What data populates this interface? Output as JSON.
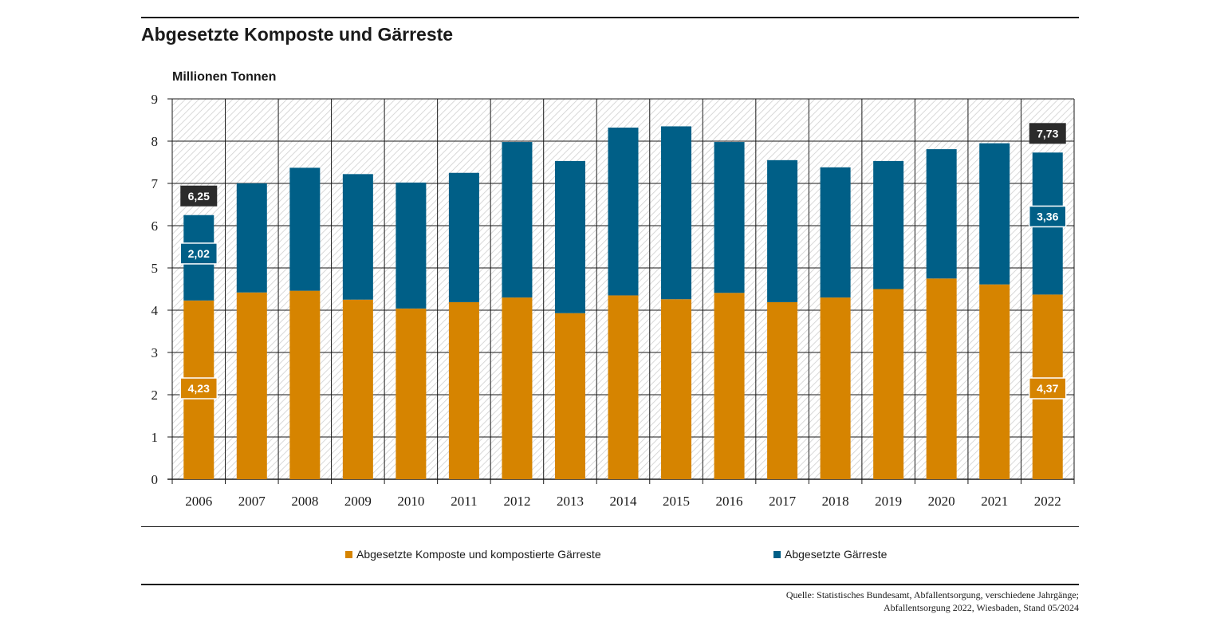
{
  "chart_data": {
    "type": "bar",
    "stacked": true,
    "title": "Abgesetzte Komposte und Gärreste",
    "ylabel": "Millionen Tonnen",
    "xlabel": "",
    "ylim": [
      0,
      9
    ],
    "yticks": [
      "0",
      "1",
      "2",
      "3",
      "4",
      "5",
      "6",
      "7",
      "8",
      "9"
    ],
    "grid": true,
    "legend_position": "bottom",
    "categories": [
      "2006",
      "2007",
      "2008",
      "2009",
      "2010",
      "2011",
      "2012",
      "2013",
      "2014",
      "2015",
      "2016",
      "2017",
      "2018",
      "2019",
      "2020",
      "2021",
      "2022"
    ],
    "series": [
      {
        "name": "Abgesetzte Komposte und kompostierte Gärreste",
        "color": "#d68400",
        "values": [
          4.23,
          4.42,
          4.46,
          4.25,
          4.04,
          4.19,
          4.3,
          3.93,
          4.35,
          4.26,
          4.41,
          4.19,
          4.3,
          4.5,
          4.75,
          4.61,
          4.37
        ]
      },
      {
        "name": "Abgesetzte Gärreste",
        "color": "#005f87",
        "values": [
          2.02,
          2.58,
          2.91,
          2.97,
          2.98,
          3.06,
          3.68,
          3.6,
          3.97,
          4.09,
          3.57,
          3.36,
          3.08,
          3.03,
          3.06,
          3.34,
          3.36
        ]
      }
    ],
    "data_labels": [
      {
        "category": "2006",
        "series": 0,
        "text": "4,23"
      },
      {
        "category": "2006",
        "series": 1,
        "text": "2,02"
      },
      {
        "category": "2006",
        "series": "total",
        "text": "6,25"
      },
      {
        "category": "2022",
        "series": 0,
        "text": "4,37"
      },
      {
        "category": "2022",
        "series": 1,
        "text": "3,36"
      },
      {
        "category": "2022",
        "series": "total",
        "text": "7,73"
      }
    ],
    "colors": {
      "total_label": "#2b2b2b",
      "grid": "#1a1a1a",
      "hatch": "#c8c8c8"
    }
  },
  "source": {
    "line1": "Quelle: Statistisches Bundesamt, Abfallentsorgung, verschiedene Jahrgänge;",
    "line2": "Abfallentsorgung 2022, Wiesbaden, Stand 05/2024"
  }
}
